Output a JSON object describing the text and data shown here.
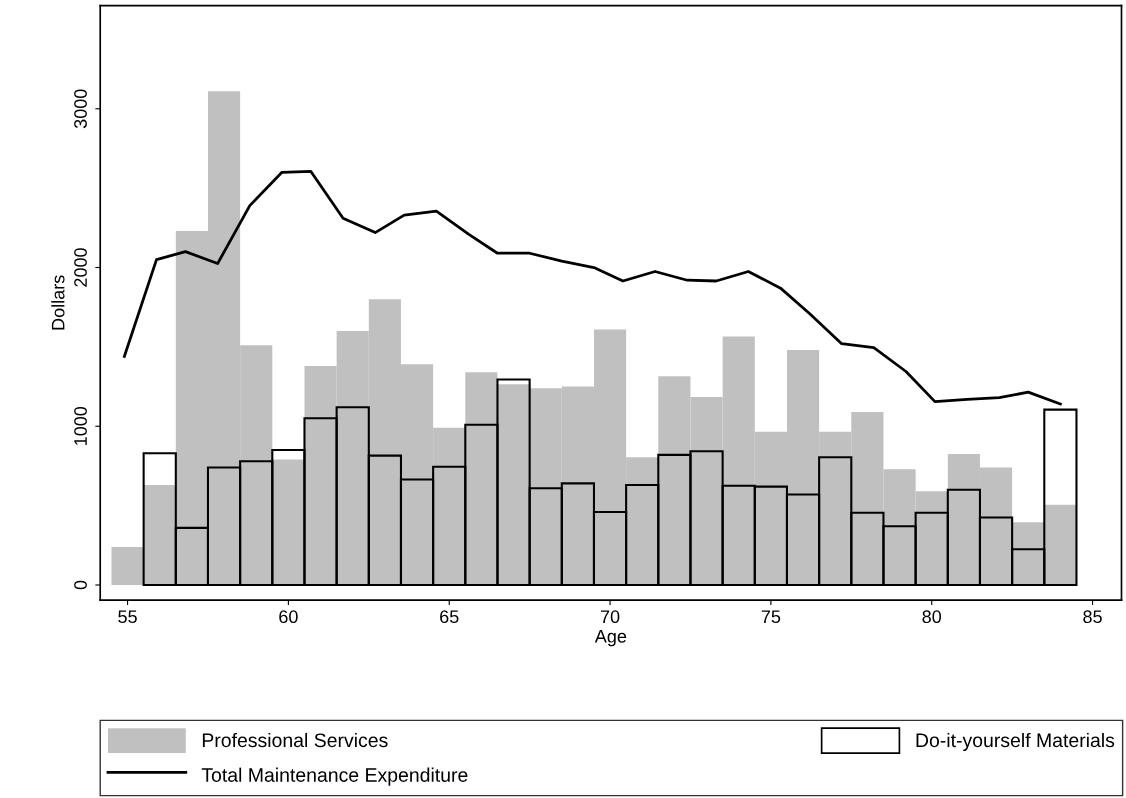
{
  "chart_data": {
    "type": "bar",
    "xlabel": "Age",
    "ylabel": "Dollars",
    "series": [
      {
        "name": "Professional Services",
        "color": "#c0c0c0",
        "x": [
          55,
          56,
          57,
          58,
          59,
          60,
          61,
          62,
          63,
          64,
          65,
          66,
          67,
          68,
          69,
          70,
          71,
          72,
          73,
          74,
          75,
          76,
          77,
          78,
          79,
          80,
          81,
          82,
          83,
          84
        ],
        "values": [
          240,
          630,
          2230,
          3110,
          1510,
          790,
          1380,
          1600,
          1800,
          1390,
          990,
          1340,
          1265,
          1240,
          1250,
          1610,
          805,
          1315,
          1185,
          1565,
          965,
          1480,
          965,
          1090,
          730,
          590,
          825,
          740,
          395,
          505
        ]
      },
      {
        "name": "Do-it-yourself Materials",
        "color": "#000000",
        "x": [
          56,
          57,
          58,
          59,
          60,
          61,
          62,
          63,
          64,
          65,
          66,
          67,
          68,
          69,
          70,
          71,
          72,
          73,
          74,
          75,
          76,
          77,
          78,
          79,
          80,
          81,
          82,
          83,
          84
        ],
        "values": [
          830,
          360,
          740,
          780,
          850,
          1050,
          1120,
          815,
          665,
          745,
          1010,
          1295,
          610,
          640,
          460,
          630,
          820,
          843,
          625,
          620,
          570,
          805,
          455,
          370,
          455,
          600,
          425,
          225,
          1105
        ]
      },
      {
        "name": "Total Maintenance Expenditure",
        "type": "line",
        "color": "#000000",
        "x": [
          54.9,
          55.9,
          56.8,
          57.8,
          58.8,
          59.8,
          60.7,
          61.7,
          62.7,
          63.6,
          64.6,
          65.6,
          66.5,
          67.5,
          68.5,
          69.5,
          70.4,
          71.4,
          72.4,
          73.3,
          74.3,
          75.3,
          76.2,
          77.2,
          78.2,
          79.2,
          80.1,
          81.1,
          82.1,
          83.0,
          84.0
        ],
        "values": [
          1440,
          2050,
          2100,
          2025,
          2390,
          2600,
          2605,
          2310,
          2220,
          2330,
          2355,
          2210,
          2090,
          2090,
          2040,
          2000,
          1915,
          1975,
          1920,
          1915,
          1975,
          1870,
          1710,
          1520,
          1495,
          1345,
          1155,
          1170,
          1180,
          1215,
          1140
        ]
      }
    ],
    "xlim": [
      54.15,
      85.9
    ],
    "xticks": [
      55,
      60,
      65,
      70,
      75,
      80,
      85
    ],
    "ylim": [
      -95,
      3650
    ],
    "yticks": [
      0,
      1000,
      2000,
      3000
    ],
    "legend": "bottom",
    "grid": false,
    "marker": "none",
    "line_style": "solid"
  }
}
